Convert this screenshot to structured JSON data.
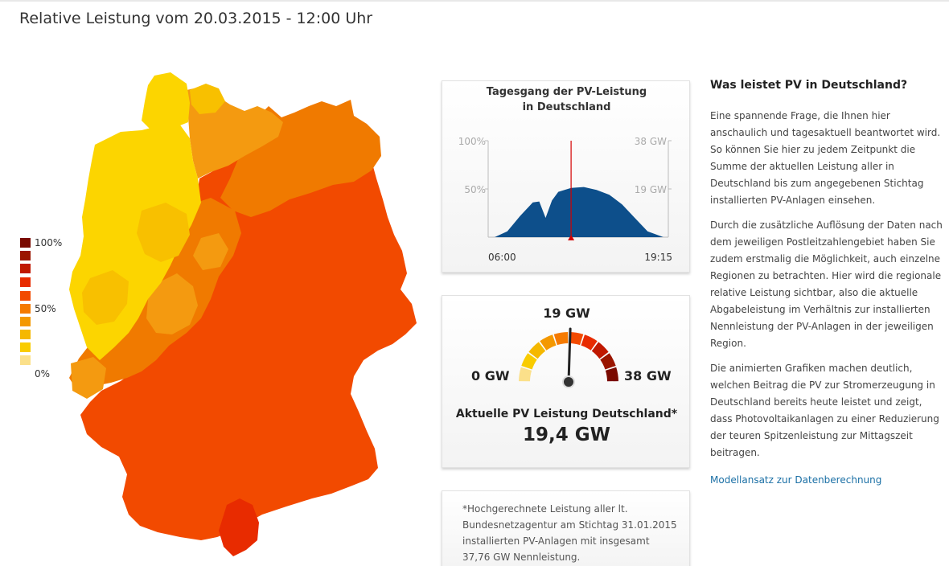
{
  "header": {
    "title": "Relative Leistung vom 20.03.2015 - 12:00 Uhr"
  },
  "legend": {
    "labels": [
      "100%",
      "50%",
      "0%"
    ],
    "colors": [
      "#7a0a00",
      "#9a1500",
      "#c01800",
      "#e82b00",
      "#f24a00",
      "#f57a00",
      "#f49800",
      "#f5b800",
      "#f9cc00",
      "#fbe08a"
    ]
  },
  "map": {
    "region_colors": {
      "dark_red": "#e82b00",
      "red": "#f24a00",
      "orange": "#f07a00",
      "light_orange": "#f49a10",
      "gold": "#f8c000",
      "yellow": "#fcd500",
      "pale_yellow": "#fde27a"
    }
  },
  "daily_chart": {
    "title_line1": "Tagesgang der PV-Leistung",
    "title_line2": "in Deutschland",
    "y_left_labels": [
      "100%",
      "50%"
    ],
    "y_right_labels": [
      "38 GW",
      "19 GW"
    ],
    "x_labels": [
      "06:00",
      "19:15"
    ],
    "current_marker_color": "#d40000",
    "fill_color": "#0d4f8b"
  },
  "chart_data": {
    "type": "area",
    "title": "Tagesgang der PV-Leistung in Deutschland",
    "x": [
      "06:00",
      "07:00",
      "08:00",
      "09:00",
      "09:30",
      "10:00",
      "10:30",
      "11:00",
      "12:00",
      "13:00",
      "14:00",
      "15:00",
      "16:00",
      "17:00",
      "18:00",
      "19:15"
    ],
    "values_pct": [
      0,
      6,
      22,
      36,
      37,
      20,
      38,
      47,
      51,
      52,
      49,
      44,
      34,
      20,
      6,
      0
    ],
    "ylim_pct": [
      0,
      100
    ],
    "ylim_gw": [
      0,
      38
    ],
    "current_time": "12:00",
    "current_pct": 51
  },
  "gauge": {
    "top_label": "19 GW",
    "min_label": "0 GW",
    "max_label": "38 GW",
    "value_fraction": 0.51,
    "caption": "Aktuelle PV Leistung Deutschland*",
    "value": "19,4 GW"
  },
  "note": {
    "text": "*Hochgerechnete Leistung aller lt. Bundesnetzagentur am Stichtag 31.01.2015 installierten PV-Anlagen mit insgesamt 37,76 GW Nennleistung."
  },
  "sidebar": {
    "heading": "Was leistet PV in Deutschland?",
    "paragraphs": [
      "Eine spannende Frage, die Ihnen hier anschaulich und tagesaktuell beantwortet wird. So können Sie hier zu jedem Zeitpunkt die Summe der aktuellen Leistung aller in Deutschland bis zum angegebenen Stichtag installierten PV-Anlagen einsehen.",
      "Durch die zusätzliche Auflösung der Daten nach dem jeweiligen Postleitzahlengebiet haben Sie zudem erstmalig die Möglichkeit, auch einzelne Regionen zu betrachten. Hier wird die regionale relative Leistung sichtbar, also die aktuelle Abgabeleistung im Verhältnis zur installierten Nennleistung der PV-Anlagen in der jeweiligen Region.",
      "Die animierten Grafiken machen deutlich, welchen Beitrag die PV zur Stromerzeugung in Deutschland bereits heute leistet und zeigt, dass Photovoltaikanlagen zu einer Reduzierung der teuren Spitzenleistung zur Mittagszeit beitragen."
    ],
    "link": "Modellansatz zur Datenberechnung"
  }
}
